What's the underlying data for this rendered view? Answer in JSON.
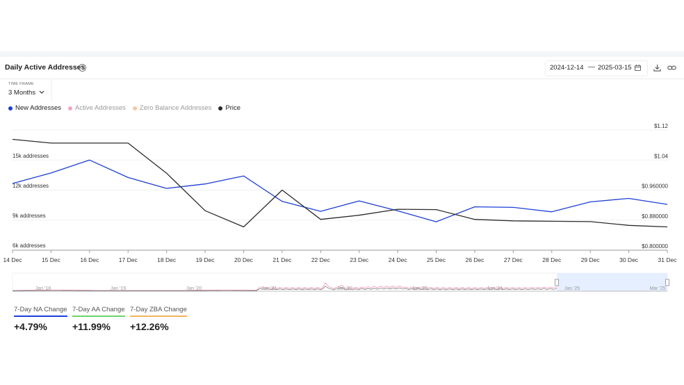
{
  "header": {
    "title": "Daily Active Addresses",
    "help_icon": "question-circle-icon",
    "date_start": "2024-12-14",
    "date_separator": "—",
    "date_end": "2025-03-15",
    "icons": [
      "calendar-icon",
      "download-icon",
      "link-icon"
    ]
  },
  "time_frame": {
    "label": "TIME FRAME",
    "value": "3 Months"
  },
  "legend": [
    {
      "label": "New Addresses",
      "color": "#1c3fd6",
      "active": true
    },
    {
      "label": "Active Addresses",
      "color": "#f3a3c8",
      "active": false
    },
    {
      "label": "Zero Balance Addresses",
      "color": "#f6c7a6",
      "active": false
    },
    {
      "label": "Price",
      "color": "#2b2b2b",
      "active": true
    }
  ],
  "chart_data": {
    "type": "line",
    "title": "Daily Active Addresses",
    "x": [
      "14 Dec",
      "15 Dec",
      "16 Dec",
      "17 Dec",
      "18 Dec",
      "19 Dec",
      "20 Dec",
      "21 Dec",
      "22 Dec",
      "23 Dec",
      "24 Dec",
      "25 Dec",
      "26 Dec",
      "27 Dec",
      "28 Dec",
      "29 Dec",
      "30 Dec",
      "31 Dec"
    ],
    "series": [
      {
        "name": "New Addresses",
        "axis": "left",
        "color": "#1c3fd6",
        "values": [
          12700,
          13750,
          15050,
          13300,
          12200,
          12650,
          13450,
          10900,
          9900,
          10950,
          9950,
          8850,
          10350,
          10300,
          9850,
          10850,
          11200,
          10600
        ]
      },
      {
        "name": "Price",
        "axis": "right",
        "color": "#2b2b2b",
        "values": [
          1.095,
          1.085,
          1.085,
          1.085,
          1.005,
          0.905,
          0.862,
          0.96,
          0.882,
          0.893,
          0.909,
          0.908,
          0.882,
          0.878,
          0.877,
          0.876,
          0.866,
          0.862
        ]
      }
    ],
    "left_axis": {
      "ticks": [
        6000,
        9000,
        12000,
        15000
      ],
      "tick_labels": [
        "6k addresses",
        "9k addresses",
        "12k addresses",
        "15k addresses"
      ],
      "range": [
        6000,
        17000
      ]
    },
    "right_axis": {
      "ticks": [
        0.8,
        0.88,
        0.96,
        1.04,
        1.12
      ],
      "tick_labels": [
        "$0.800000",
        "$0.880000",
        "$0.960000",
        "$1.04",
        "$1.12"
      ],
      "range": [
        0.8,
        1.12
      ]
    },
    "grid": true
  },
  "navigator": {
    "labels": [
      "Jan '18",
      "Jan '19",
      "Jan '20",
      "Jan '21",
      "Jan '22",
      "Jan '23",
      "Jan '24",
      "Jan '25",
      "Mar '25"
    ]
  },
  "stats": [
    {
      "label": "7-Day NA Change",
      "value": "+4.79%",
      "color": "#1c3fd6"
    },
    {
      "label": "7-Day AA Change",
      "value": "+11.99%",
      "color": "#6bd36b"
    },
    {
      "label": "7-Day ZBA Change",
      "value": "+12.26%",
      "color": "#f2b25c"
    }
  ]
}
